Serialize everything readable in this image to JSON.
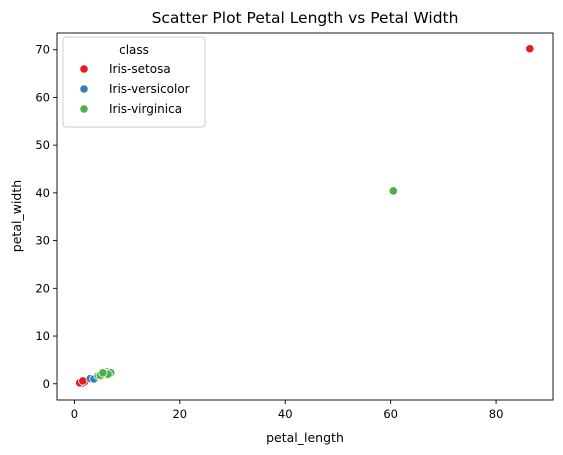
{
  "chart_data": {
    "type": "scatter",
    "title": "Scatter Plot Petal Length vs Petal Width",
    "xlabel": "petal_length",
    "ylabel": "petal_width",
    "xlim": [
      -3.3,
      90.8
    ],
    "ylim": [
      -3.4,
      73.5
    ],
    "xticks": [
      0,
      20,
      40,
      60,
      80
    ],
    "yticks": [
      0,
      10,
      20,
      30,
      40,
      50,
      60,
      70
    ],
    "grid": false,
    "legend": {
      "title": "class",
      "placement": "top-left"
    },
    "series": [
      {
        "name": "Iris-setosa",
        "color": "#e41a1c",
        "points": [
          [
            1.4,
            0.2
          ],
          [
            1.3,
            0.2
          ],
          [
            1.5,
            0.2
          ],
          [
            1.4,
            0.3
          ],
          [
            1.7,
            0.4
          ],
          [
            1.2,
            0.2
          ],
          [
            1.6,
            0.2
          ],
          [
            1.5,
            0.1
          ],
          [
            1.0,
            0.2
          ],
          [
            1.9,
            0.4
          ],
          [
            1.6,
            0.6
          ],
          [
            86.4,
            70.2
          ]
        ]
      },
      {
        "name": "Iris-versicolor",
        "color": "#377eb8",
        "points": [
          [
            4.7,
            1.4
          ],
          [
            4.5,
            1.5
          ],
          [
            4.9,
            1.5
          ],
          [
            4.0,
            1.3
          ],
          [
            3.3,
            1.0
          ],
          [
            3.9,
            1.1
          ],
          [
            3.5,
            1.0
          ],
          [
            4.2,
            1.3
          ],
          [
            3.0,
            1.1
          ],
          [
            4.4,
            1.4
          ],
          [
            4.8,
            1.8
          ],
          [
            5.0,
            1.7
          ],
          [
            5.1,
            1.6
          ],
          [
            3.7,
            1.0
          ]
        ]
      },
      {
        "name": "Iris-virginica",
        "color": "#4daf4a",
        "points": [
          [
            6.0,
            2.5
          ],
          [
            5.1,
            1.9
          ],
          [
            5.9,
            2.1
          ],
          [
            5.6,
            1.8
          ],
          [
            5.8,
            2.2
          ],
          [
            6.6,
            2.1
          ],
          [
            4.5,
            1.7
          ],
          [
            6.3,
            1.8
          ],
          [
            6.1,
            2.5
          ],
          [
            5.3,
            2.0
          ],
          [
            5.5,
            2.1
          ],
          [
            5.0,
            2.0
          ],
          [
            6.7,
            2.2
          ],
          [
            6.9,
            2.3
          ],
          [
            5.7,
            2.3
          ],
          [
            4.9,
            1.8
          ],
          [
            6.4,
            2.0
          ],
          [
            5.4,
            2.3
          ],
          [
            60.5,
            40.4
          ]
        ]
      }
    ]
  }
}
